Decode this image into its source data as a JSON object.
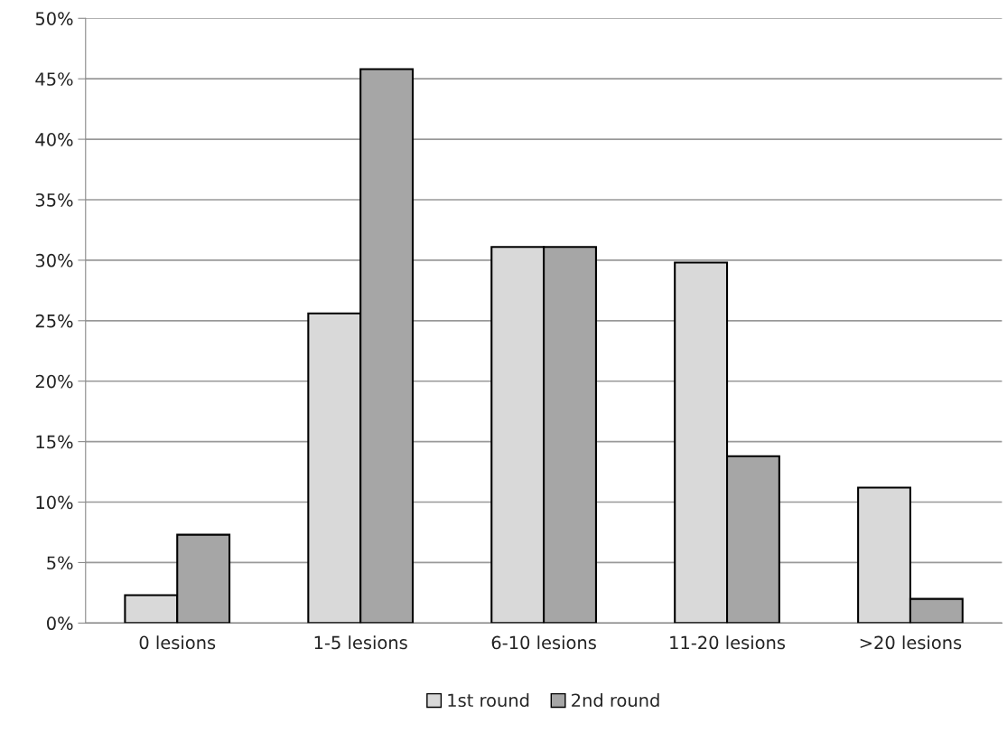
{
  "chart_data": {
    "type": "bar",
    "categories": [
      "0 lesions",
      "1-5 lesions",
      "6-10 lesions",
      "11-20 lesions",
      ">20 lesions"
    ],
    "series": [
      {
        "name": "1st round",
        "color": "#d9d9d9",
        "values": [
          2.3,
          25.6,
          31.1,
          29.8,
          11.2
        ]
      },
      {
        "name": "2nd round",
        "color": "#a6a6a6",
        "values": [
          7.3,
          45.8,
          31.1,
          13.8,
          2.0
        ]
      }
    ],
    "ylim": [
      0,
      50
    ],
    "yticks": [
      {
        "value": 0,
        "label": "0%"
      },
      {
        "value": 5,
        "label": "5%"
      },
      {
        "value": 10,
        "label": "10%"
      },
      {
        "value": 15,
        "label": "15%"
      },
      {
        "value": 20,
        "label": "20%"
      },
      {
        "value": 25,
        "label": "25%"
      },
      {
        "value": 30,
        "label": "30%"
      },
      {
        "value": 35,
        "label": "35%"
      },
      {
        "value": 40,
        "label": "40%"
      },
      {
        "value": 45,
        "label": "45%"
      },
      {
        "value": 50,
        "label": "50%"
      }
    ],
    "grid": "y",
    "legend": "bottom"
  }
}
